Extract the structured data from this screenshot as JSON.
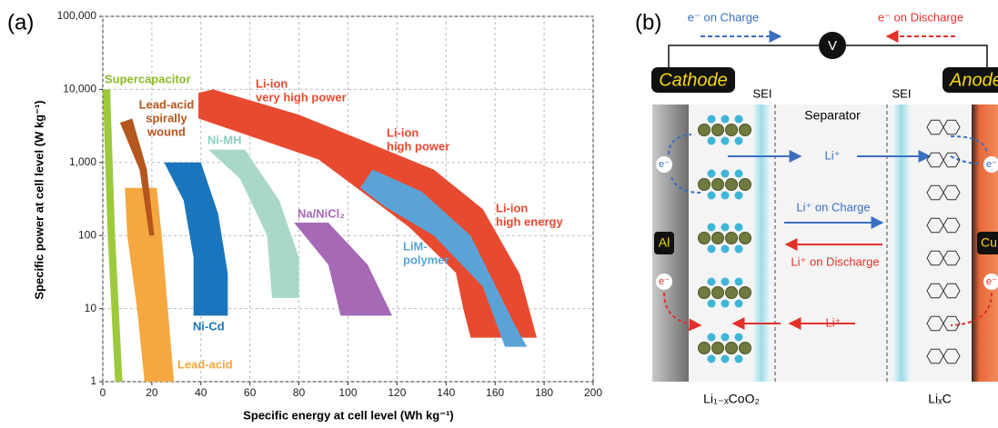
{
  "chart_data": {
    "type": "polygon",
    "panel_label": "(a)",
    "x_label": "Specific energy at cell level (Wh kg⁻¹)",
    "y_label": "Specific power at cell level (W kg⁻¹)",
    "xlim": [
      0,
      200
    ],
    "xticks": [
      0,
      20,
      40,
      60,
      80,
      100,
      120,
      140,
      160,
      180,
      200
    ],
    "ylim": [
      1,
      100000
    ],
    "y_scale": "log",
    "yticks": [
      1,
      10,
      100,
      {
        "value": 1000,
        "label": "1,000"
      },
      {
        "value": 10000,
        "label": "10,000"
      },
      {
        "value": 100000,
        "label": "100,000"
      }
    ],
    "grid": true,
    "series": [
      {
        "name": [
          "Supercapacitor"
        ],
        "color": "#9dc93c",
        "x": [
          0,
          3,
          5,
          8,
          5,
          2
        ],
        "y": [
          10000,
          10000,
          100,
          1,
          1,
          100
        ]
      },
      {
        "name": [
          "Lead-acid",
          "spirally",
          "wound"
        ],
        "color": "#b5561e",
        "x": [
          7,
          12,
          18,
          21,
          19,
          15
        ],
        "y": [
          3500,
          4000,
          800,
          100,
          100,
          800
        ]
      },
      {
        "name": [
          "Lead-acid"
        ],
        "color": "#f5a840",
        "x": [
          9,
          22,
          24,
          29,
          17,
          14,
          10
        ],
        "y": [
          450,
          450,
          100,
          1,
          1,
          10,
          100
        ]
      },
      {
        "name": [
          "Ni-Cd"
        ],
        "color": "#1a75bc",
        "x": [
          25,
          40,
          47,
          51,
          51,
          37,
          37,
          33
        ],
        "y": [
          1000,
          1000,
          200,
          30,
          8,
          8,
          50,
          300
        ]
      },
      {
        "name": [
          "Ni-MH"
        ],
        "color": "#a9d8cb",
        "x": [
          43,
          58,
          72,
          80,
          80,
          69,
          67,
          56
        ],
        "y": [
          1500,
          1500,
          300,
          50,
          14,
          14,
          100,
          600
        ]
      },
      {
        "name": [
          "Na/NiCl₂"
        ],
        "color": "#a569b5",
        "x": [
          78,
          92,
          108,
          118,
          97,
          92
        ],
        "y": [
          150,
          150,
          40,
          8,
          8,
          40
        ]
      },
      {
        "name": [
          "LiM-",
          "polymer"
        ],
        "color": "#5ba3d6",
        "x": [
          105,
          110,
          130,
          150,
          168,
          173,
          164,
          155,
          135,
          115
        ],
        "y": [
          450,
          800,
          400,
          100,
          6,
          3,
          3,
          20,
          100,
          250
        ]
      },
      {
        "name": [
          "Li-ion",
          "very high power"
        ],
        "color": "#e84a30",
        "x": [
          39,
          45,
          80,
          106,
          135,
          155,
          170,
          177,
          150,
          147,
          144,
          125,
          88,
          39
        ],
        "y": [
          9000,
          10000,
          4500,
          2000,
          800,
          230,
          30,
          4,
          4,
          10,
          31,
          130,
          1100,
          4000
        ]
      }
    ],
    "annotations": [
      {
        "text": [
          "Li-ion",
          "high power"
        ],
        "color": "#e84a30"
      },
      {
        "text": [
          "Li-ion",
          "high energy"
        ],
        "color": "#e84a30"
      }
    ]
  },
  "diagram": {
    "panel_label": "(b)",
    "e_charge": "e⁻ on Charge",
    "e_discharge": "e⁻ on Discharge",
    "meter": "V",
    "cathode": "Cathode",
    "anode": "Anode",
    "sei_left": "SEI",
    "sei_right": "SEI",
    "separator": "Separator",
    "li_top": "Li⁺",
    "li_charge": "Li⁺ on Charge",
    "li_discharge": "Li⁺ on Discharge",
    "li_bottom": "Li⁺",
    "al": "Al",
    "cu": "Cu",
    "electrons": [
      "e⁻",
      "e⁻",
      "e⁻",
      "e⁻"
    ],
    "cathode_material": "Li₁₋ₓCoO₂",
    "anode_material": "LiₓC"
  }
}
